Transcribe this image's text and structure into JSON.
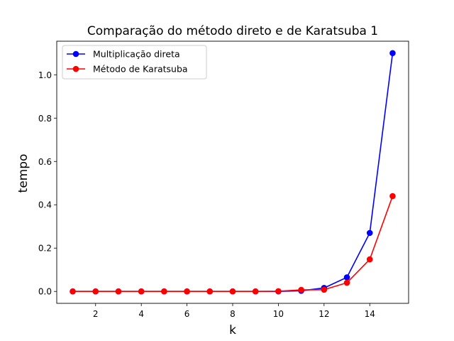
{
  "chart_data": {
    "type": "line",
    "title": "Comparação do método direto e de Karatsuba 1",
    "xlabel": "k",
    "ylabel": "tempo",
    "xlim": [
      0.3,
      15.7
    ],
    "ylim": [
      -0.055,
      1.155
    ],
    "xticks": [
      2,
      4,
      6,
      8,
      10,
      12,
      14
    ],
    "yticks": [
      0.0,
      0.2,
      0.4,
      0.6,
      0.8,
      1.0
    ],
    "ytick_labels": [
      "0.0",
      "0.2",
      "0.4",
      "0.6",
      "0.8",
      "1.0"
    ],
    "x": [
      1,
      2,
      3,
      4,
      5,
      6,
      7,
      8,
      9,
      10,
      11,
      12,
      13,
      14,
      15
    ],
    "series": [
      {
        "name": "Multiplicação direta",
        "color": "#0000ff",
        "values": [
          0.0,
          0.0,
          0.0,
          0.0,
          0.0,
          0.0,
          0.0,
          0.0,
          0.0,
          0.0,
          0.003,
          0.016,
          0.065,
          0.27,
          1.1
        ]
      },
      {
        "name": "Método de Karatsuba",
        "color": "#ff0000",
        "values": [
          0.0,
          0.0,
          0.0,
          0.0,
          0.0,
          0.0,
          0.0,
          0.0,
          0.0,
          0.001,
          0.007,
          0.008,
          0.04,
          0.148,
          0.44
        ]
      }
    ],
    "grid": false,
    "legend_position": "upper-left"
  }
}
